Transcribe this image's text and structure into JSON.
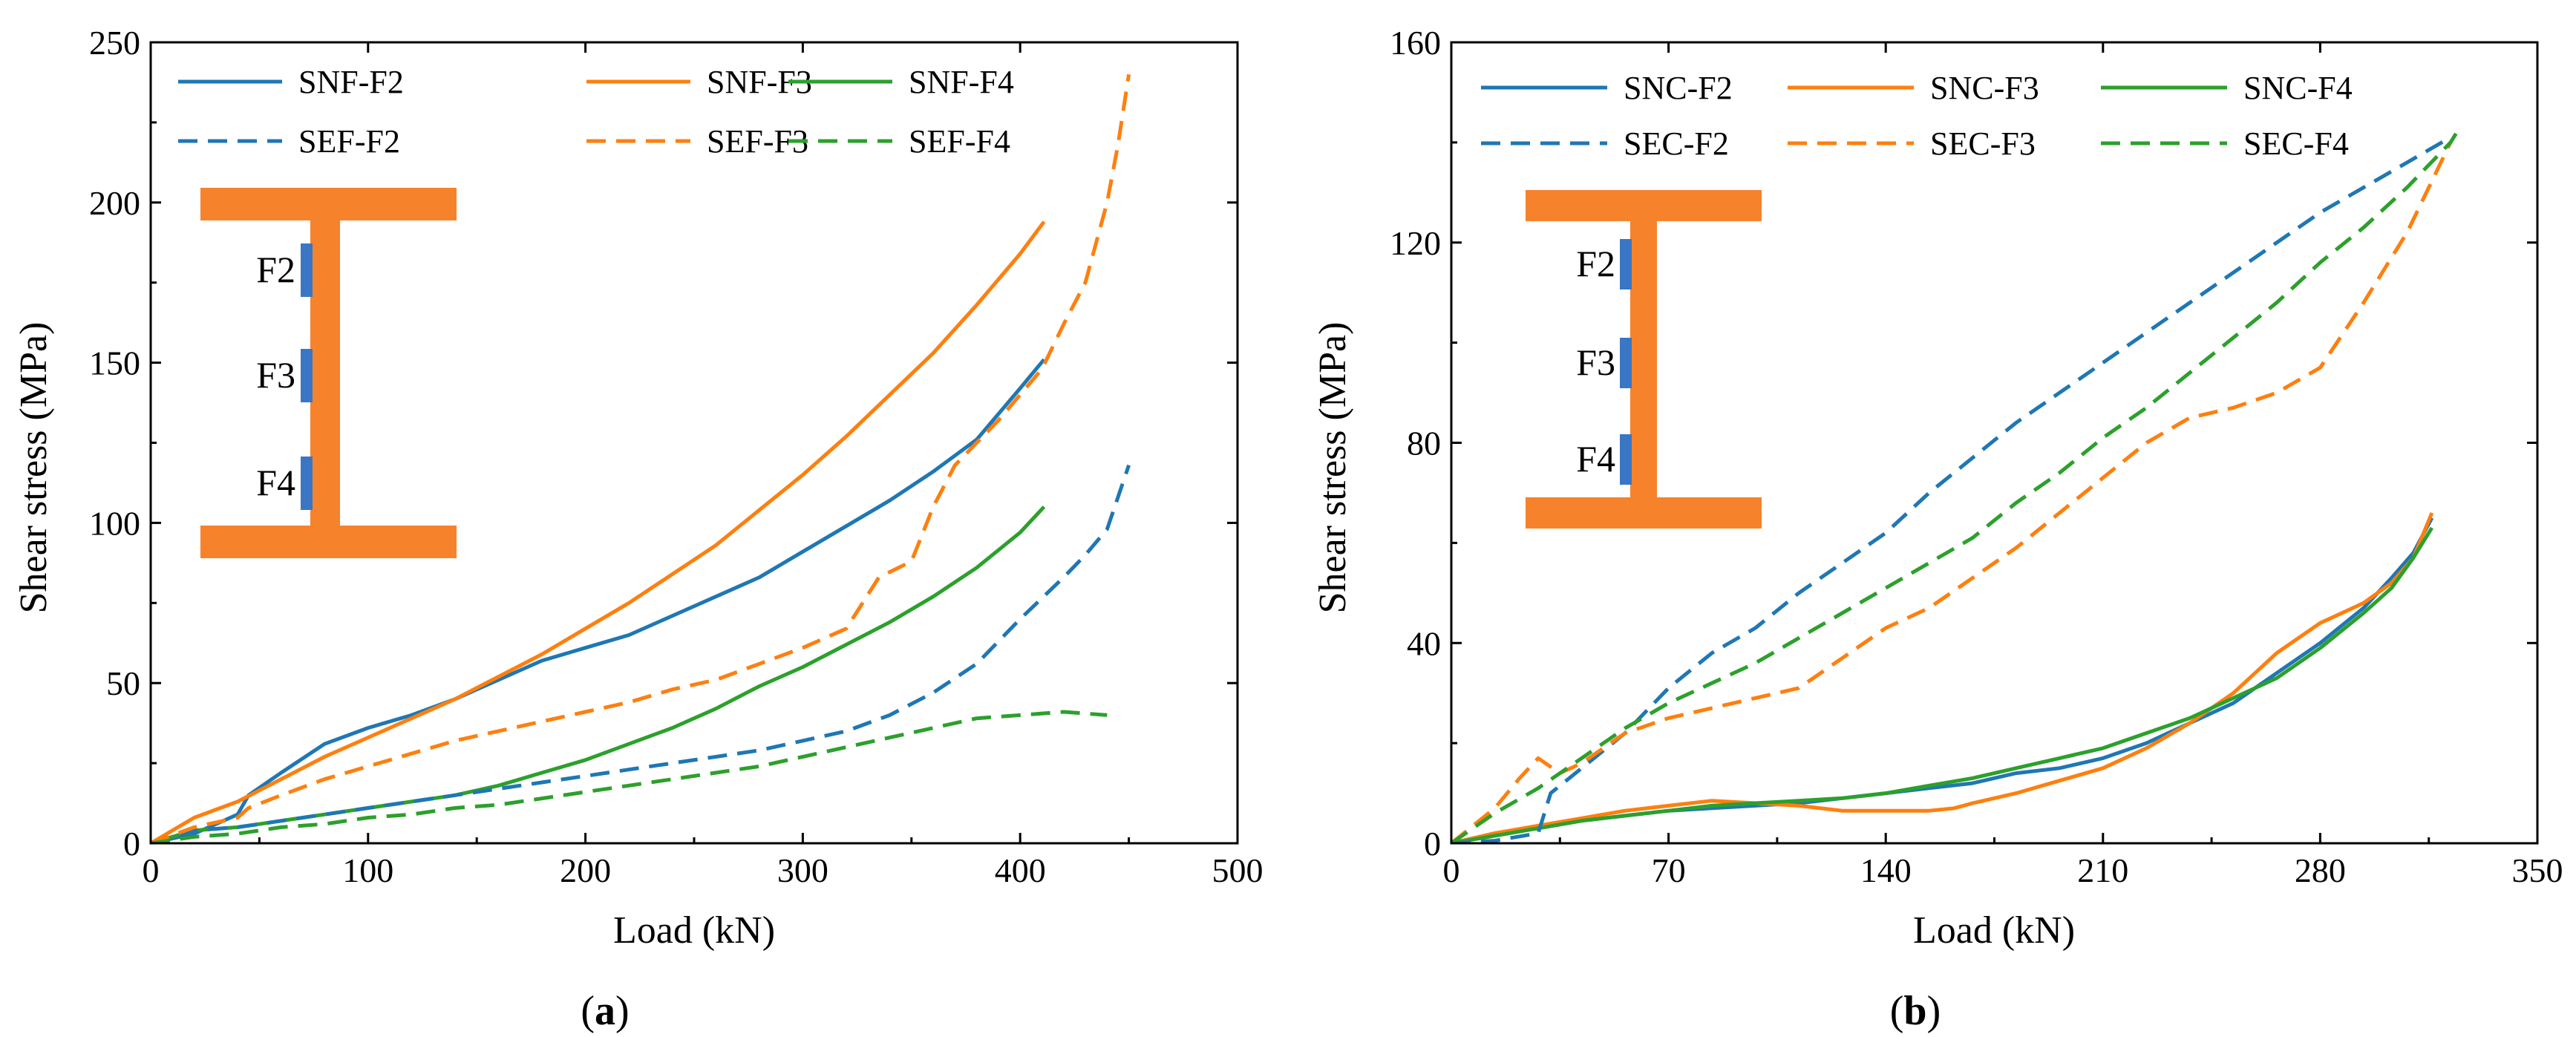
{
  "figure": {
    "colors": {
      "F2": "#1f77b4",
      "F3": "#ff7f0e",
      "F4": "#2ca02c",
      "beam": "#f7822c",
      "gauge": "#3a76c4",
      "axis": "#000000"
    }
  },
  "chart_data": [
    {
      "type": "line",
      "panel_label": "a",
      "xlabel": "Load (kN)",
      "ylabel": "Shear stress (MPa)",
      "xlim": [
        0,
        500
      ],
      "ylim": [
        0,
        250
      ],
      "x_ticks": [
        0,
        100,
        200,
        300,
        400,
        500
      ],
      "y_ticks": [
        0,
        50,
        100,
        150,
        200,
        250
      ],
      "x_tick_labels": [
        "0",
        "100",
        "200",
        "300",
        "400",
        "500"
      ],
      "y_tick_labels": [
        "0",
        "50",
        "100",
        "150",
        "200",
        "250"
      ],
      "legend": {
        "placement": "top",
        "columns": 3
      },
      "inset": {
        "labels": [
          "F2",
          "F3",
          "F4"
        ]
      },
      "series": [
        {
          "name": "SNF-F2",
          "style": "solid",
          "color_key": "F2",
          "x": [
            0,
            20,
            40,
            45,
            60,
            80,
            100,
            120,
            140,
            160,
            180,
            200,
            220,
            240,
            260,
            280,
            300,
            320,
            340,
            360,
            380,
            400,
            411
          ],
          "y": [
            0,
            3,
            9,
            15,
            22,
            31,
            36,
            40,
            45,
            51,
            57,
            61,
            65,
            71,
            77,
            83,
            91,
            99,
            107,
            116,
            126,
            142,
            151
          ]
        },
        {
          "name": "SNF-F3",
          "style": "solid",
          "color_key": "F3",
          "x": [
            0,
            20,
            40,
            60,
            80,
            100,
            120,
            140,
            160,
            180,
            200,
            220,
            240,
            260,
            280,
            300,
            320,
            340,
            360,
            380,
            400,
            411
          ],
          "y": [
            0,
            8,
            13,
            20,
            27,
            33,
            39,
            45,
            52,
            59,
            67,
            75,
            84,
            93,
            104,
            115,
            127,
            140,
            153,
            168,
            184,
            194
          ]
        },
        {
          "name": "SNF-F4",
          "style": "solid",
          "color_key": "F4",
          "x": [
            0,
            20,
            40,
            60,
            80,
            100,
            120,
            140,
            160,
            180,
            200,
            220,
            240,
            260,
            280,
            300,
            320,
            340,
            360,
            380,
            400,
            411
          ],
          "y": [
            0,
            4,
            5,
            7,
            9,
            11,
            13,
            15,
            18,
            22,
            26,
            31,
            36,
            42,
            49,
            55,
            62,
            69,
            77,
            86,
            97,
            105
          ]
        },
        {
          "name": "SEF-F2",
          "style": "dashed",
          "color_key": "F2",
          "x": [
            0,
            20,
            40,
            60,
            80,
            100,
            120,
            140,
            160,
            180,
            200,
            220,
            240,
            260,
            280,
            300,
            320,
            340,
            360,
            380,
            400,
            420,
            430,
            440,
            450
          ],
          "y": [
            0,
            4,
            5,
            7,
            9,
            11,
            13,
            15,
            17,
            19,
            21,
            23,
            25,
            27,
            29,
            32,
            35,
            40,
            47,
            56,
            70,
            83,
            90,
            98,
            118
          ]
        },
        {
          "name": "SEF-F3",
          "style": "dashed",
          "color_key": "F3",
          "x": [
            0,
            20,
            40,
            45,
            60,
            80,
            100,
            120,
            140,
            160,
            180,
            200,
            220,
            240,
            260,
            280,
            300,
            320,
            335,
            350,
            360,
            370,
            380,
            390,
            400,
            410,
            420,
            430,
            440,
            445,
            450
          ],
          "y": [
            0,
            5,
            8,
            11,
            15,
            20,
            24,
            28,
            32,
            35,
            38,
            41,
            44,
            48,
            51,
            56,
            61,
            67,
            83,
            88,
            105,
            118,
            125,
            132,
            140,
            148,
            162,
            175,
            200,
            218,
            240
          ]
        },
        {
          "name": "SEF-F4",
          "style": "dashed",
          "color_key": "F4",
          "x": [
            0,
            20,
            40,
            60,
            80,
            100,
            120,
            140,
            160,
            180,
            200,
            220,
            240,
            260,
            280,
            300,
            320,
            340,
            360,
            380,
            400,
            420,
            440
          ],
          "y": [
            0,
            2,
            3,
            5,
            6,
            8,
            9,
            11,
            12,
            14,
            16,
            18,
            20,
            22,
            24,
            27,
            30,
            33,
            36,
            39,
            40,
            41,
            40
          ]
        }
      ]
    },
    {
      "type": "line",
      "panel_label": "b",
      "xlabel": "Load (kN)",
      "ylabel": "Shear stress (MPa)",
      "xlim": [
        0,
        350
      ],
      "ylim": [
        0,
        160
      ],
      "x_ticks": [
        0,
        70,
        140,
        210,
        280,
        350
      ],
      "y_ticks": [
        0,
        40,
        80,
        120,
        160
      ],
      "x_tick_labels": [
        "0",
        "70",
        "140",
        "210",
        "280",
        "350"
      ],
      "y_tick_labels": [
        "0",
        "40",
        "80",
        "120",
        "160"
      ],
      "legend": {
        "placement": "top",
        "columns": 3
      },
      "inset": {
        "labels": [
          "F2",
          "F3",
          "F4"
        ]
      },
      "series": [
        {
          "name": "SNC-F2",
          "style": "solid",
          "color_key": "F2",
          "x": [
            0,
            14,
            28,
            42,
            56,
            70,
            84,
            98,
            112,
            126,
            140,
            154,
            168,
            182,
            196,
            210,
            224,
            238,
            252,
            266,
            280,
            294,
            303,
            310,
            316
          ],
          "y": [
            0,
            2,
            3,
            4.5,
            5.5,
            6.5,
            7,
            7.5,
            8,
            9,
            10,
            11,
            12,
            14,
            15,
            17,
            20,
            24,
            28,
            34,
            40,
            47,
            53,
            58,
            65
          ]
        },
        {
          "name": "SNC-F3",
          "style": "solid",
          "color_key": "F3",
          "x": [
            0,
            14,
            28,
            42,
            56,
            70,
            84,
            98,
            112,
            126,
            140,
            154,
            162,
            168,
            182,
            196,
            210,
            224,
            238,
            252,
            266,
            280,
            294,
            303,
            310,
            316
          ],
          "y": [
            0,
            2,
            3.5,
            5,
            6.5,
            7.5,
            8.5,
            8,
            7.5,
            6.5,
            6.5,
            6.5,
            7,
            8,
            10,
            12.5,
            15,
            19,
            24,
            30,
            38,
            44,
            48,
            52,
            57,
            66
          ]
        },
        {
          "name": "SNC-F4",
          "style": "solid",
          "color_key": "F4",
          "x": [
            0,
            14,
            28,
            42,
            56,
            70,
            84,
            98,
            112,
            126,
            140,
            154,
            168,
            182,
            196,
            210,
            224,
            238,
            252,
            266,
            280,
            294,
            303,
            310,
            316
          ],
          "y": [
            0,
            1.5,
            3,
            4.5,
            5.5,
            6.5,
            7.5,
            8,
            8.5,
            9,
            10,
            11.5,
            13,
            15,
            17,
            19,
            22,
            25,
            29,
            33,
            39,
            46,
            51,
            57,
            63
          ]
        },
        {
          "name": "SEC-F2",
          "style": "dashed",
          "color_key": "F2",
          "x": [
            0,
            14,
            28,
            32,
            42,
            56,
            70,
            84,
            98,
            112,
            126,
            140,
            154,
            168,
            182,
            196,
            210,
            224,
            238,
            252,
            266,
            280,
            294,
            308,
            322
          ],
          "y": [
            0,
            0.5,
            2,
            10,
            15,
            22,
            31,
            38,
            43,
            50,
            56,
            62,
            70,
            77,
            84,
            90,
            96,
            102,
            108,
            114,
            120,
            126,
            131,
            136,
            141
          ]
        },
        {
          "name": "SEC-F3",
          "style": "dashed",
          "color_key": "F3",
          "x": [
            0,
            14,
            22,
            28,
            35,
            42,
            56,
            70,
            84,
            98,
            112,
            126,
            140,
            154,
            168,
            182,
            196,
            210,
            224,
            238,
            252,
            266,
            280,
            294,
            308,
            322
          ],
          "y": [
            0,
            7,
            13,
            17,
            14,
            16,
            22,
            25,
            27,
            29,
            31,
            37,
            43,
            47,
            53,
            59,
            66,
            73,
            80,
            85,
            87,
            90,
            95,
            108,
            122,
            140
          ]
        },
        {
          "name": "SEC-F4",
          "style": "dashed",
          "color_key": "F4",
          "x": [
            0,
            14,
            28,
            42,
            56,
            70,
            84,
            98,
            112,
            126,
            140,
            154,
            168,
            182,
            196,
            210,
            224,
            238,
            252,
            266,
            280,
            294,
            308,
            322,
            325
          ],
          "y": [
            0,
            6,
            11,
            17,
            23,
            28,
            32,
            36,
            41,
            46,
            51,
            56,
            61,
            68,
            74,
            81,
            87,
            94,
            101,
            108,
            116,
            123,
            131,
            140,
            143
          ]
        }
      ]
    }
  ]
}
